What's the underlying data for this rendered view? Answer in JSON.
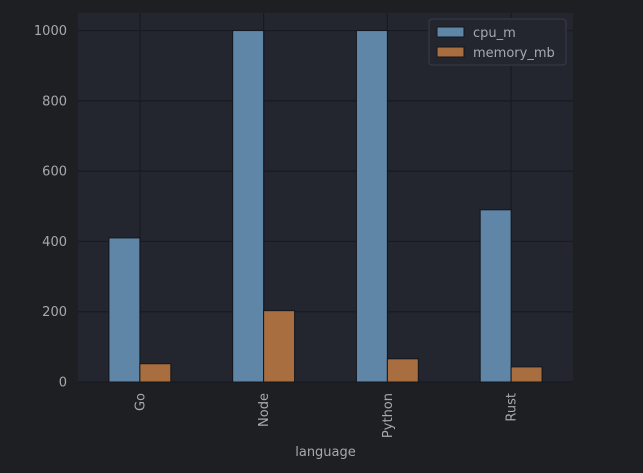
{
  "chart_data": {
    "type": "bar",
    "title": "",
    "xlabel": "language",
    "ylabel": "",
    "categories": [
      "Go",
      "Node",
      "Python",
      "Rust"
    ],
    "series": [
      {
        "name": "cpu_m",
        "values": [
          410,
          1000,
          1000,
          490
        ]
      },
      {
        "name": "memory_mb",
        "values": [
          52,
          203,
          66,
          43
        ]
      }
    ],
    "ylim": [
      0,
      1050
    ],
    "yticks": [
      0,
      200,
      400,
      600,
      800,
      1000
    ],
    "grid": true,
    "legend_position": "top-right",
    "x_tick_rotation": "vertical"
  },
  "colors": {
    "page_background": "#1e1f22",
    "plot_background": "#23252f",
    "grid": "#191b22",
    "text": "#a6a9b0",
    "series": [
      "#5f86a6",
      "#a86e3f"
    ],
    "bar_edge": "#14161c",
    "legend_background": "#23252f",
    "legend_border": "#3a3d47"
  }
}
